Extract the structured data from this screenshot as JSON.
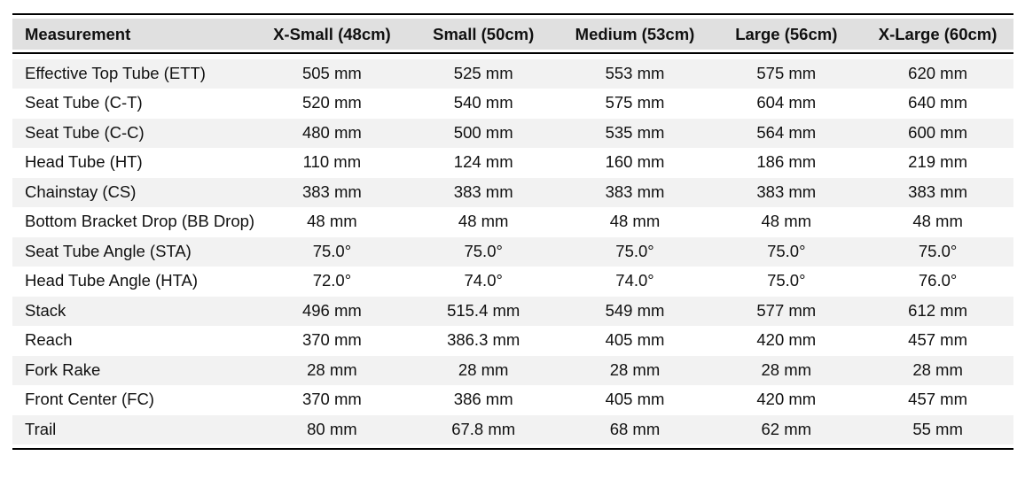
{
  "table": {
    "headers": [
      "Measurement",
      "X-Small (48cm)",
      "Small (50cm)",
      "Medium (53cm)",
      "Large (56cm)",
      "X-Large (60cm)"
    ],
    "rows": [
      [
        "Effective Top Tube (ETT)",
        "505 mm",
        "525 mm",
        "553 mm",
        "575 mm",
        "620 mm"
      ],
      [
        "Seat Tube (C-T)",
        "520 mm",
        "540 mm",
        "575 mm",
        "604 mm",
        "640 mm"
      ],
      [
        "Seat Tube (C-C)",
        "480 mm",
        "500 mm",
        "535 mm",
        "564 mm",
        "600 mm"
      ],
      [
        "Head Tube (HT)",
        "110 mm",
        "124 mm",
        "160 mm",
        "186 mm",
        "219 mm"
      ],
      [
        "Chainstay (CS)",
        "383 mm",
        "383 mm",
        "383 mm",
        "383 mm",
        "383 mm"
      ],
      [
        "Bottom Bracket Drop (BB Drop)",
        "48 mm",
        "48 mm",
        "48 mm",
        "48 mm",
        "48 mm"
      ],
      [
        "Seat Tube Angle (STA)",
        "75.0°",
        "75.0°",
        "75.0°",
        "75.0°",
        "75.0°"
      ],
      [
        "Head Tube Angle (HTA)",
        "72.0°",
        "74.0°",
        "74.0°",
        "75.0°",
        "76.0°"
      ],
      [
        "Stack",
        "496 mm",
        "515.4 mm",
        "549 mm",
        "577 mm",
        "612 mm"
      ],
      [
        "Reach",
        "370 mm",
        "386.3 mm",
        "405 mm",
        "420 mm",
        "457 mm"
      ],
      [
        "Fork Rake",
        "28 mm",
        "28 mm",
        "28 mm",
        "28 mm",
        "28 mm"
      ],
      [
        "Front Center (FC)",
        "370 mm",
        "386 mm",
        "405 mm",
        "420 mm",
        "457 mm"
      ],
      [
        "Trail",
        "80 mm",
        "67.8 mm",
        "68 mm",
        "62 mm",
        "55 mm"
      ]
    ]
  }
}
